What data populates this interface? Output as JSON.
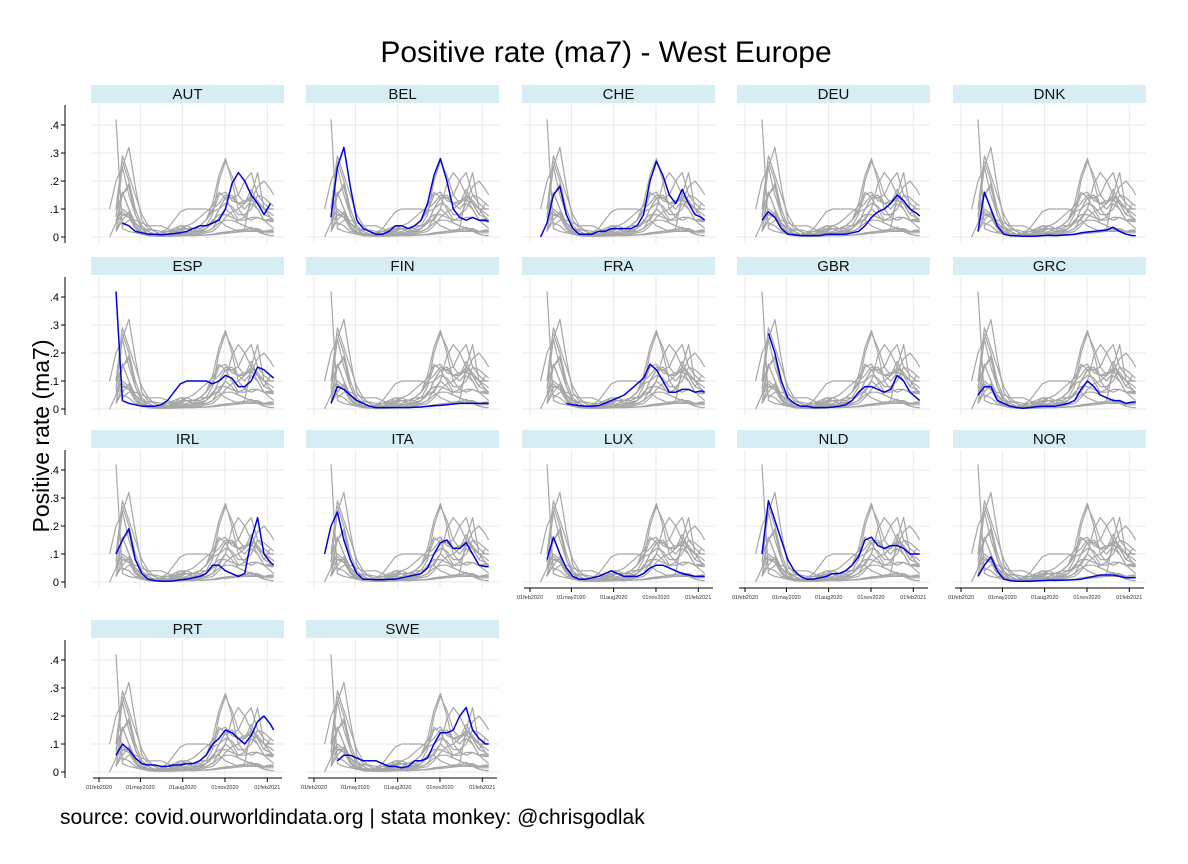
{
  "title": "Positive rate (ma7) - West Europe",
  "ylabel": "Positive rate (ma7)",
  "source": "source: covid.ourworldindata.org | stata monkey: @chrisgodlak",
  "colors": {
    "highlight": "#0000dd",
    "background_lines": "#a6a6a6",
    "panel_header": "#d6edf3",
    "grid": "#e8e8e8",
    "axis": "#000000"
  },
  "chart_data": {
    "type": "line",
    "layout": "small-multiples",
    "columns": 5,
    "x_ticks": [
      "01feb2020",
      "01may2020",
      "01aug2020",
      "01nov2020",
      "01feb2021"
    ],
    "y_ticks": [
      "0",
      ".1",
      ".2",
      ".3",
      ".4"
    ],
    "ylim": [
      0,
      0.45
    ],
    "xlim": [
      "2020-02-01",
      "2021-02-20"
    ],
    "x": [
      "2020-02-24",
      "2020-03-09",
      "2020-03-23",
      "2020-04-06",
      "2020-04-20",
      "2020-05-04",
      "2020-05-18",
      "2020-06-01",
      "2020-06-15",
      "2020-06-29",
      "2020-07-13",
      "2020-07-27",
      "2020-08-10",
      "2020-08-24",
      "2020-09-07",
      "2020-09-21",
      "2020-10-05",
      "2020-10-19",
      "2020-11-02",
      "2020-11-16",
      "2020-11-30",
      "2020-12-14",
      "2020-12-28",
      "2021-01-11",
      "2021-01-25",
      "2021-02-08",
      "2021-02-15"
    ],
    "grid": true,
    "panels": [
      {
        "label": "AUT",
        "values": [
          null,
          null,
          0.05,
          0.04,
          0.02,
          0.015,
          0.01,
          0.01,
          0.008,
          0.01,
          0.012,
          0.015,
          0.02,
          0.03,
          0.04,
          0.04,
          0.05,
          0.06,
          0.1,
          0.19,
          0.23,
          0.2,
          0.15,
          0.12,
          0.08,
          0.12,
          null
        ]
      },
      {
        "label": "BEL",
        "values": [
          null,
          0.07,
          0.25,
          0.32,
          0.18,
          0.06,
          0.03,
          0.02,
          0.01,
          0.01,
          0.02,
          0.04,
          0.04,
          0.03,
          0.04,
          0.06,
          0.12,
          0.22,
          0.28,
          0.2,
          0.1,
          0.07,
          0.06,
          0.07,
          0.06,
          0.06,
          0.055
        ]
      },
      {
        "label": "CHE",
        "values": [
          0.0,
          0.05,
          0.15,
          0.18,
          0.08,
          0.03,
          0.01,
          0.01,
          0.01,
          0.02,
          0.02,
          0.03,
          0.03,
          0.03,
          0.03,
          0.04,
          0.08,
          0.2,
          0.27,
          0.22,
          0.15,
          0.12,
          0.17,
          0.12,
          0.08,
          0.07,
          0.06
        ]
      },
      {
        "label": "DEU",
        "values": [
          null,
          0.06,
          0.09,
          0.07,
          0.03,
          0.01,
          0.008,
          0.005,
          0.005,
          0.005,
          0.005,
          0.01,
          0.01,
          0.01,
          0.01,
          0.015,
          0.02,
          0.04,
          0.07,
          0.09,
          0.1,
          0.12,
          0.15,
          0.13,
          0.1,
          0.085,
          0.075
        ]
      },
      {
        "label": "DNK",
        "values": [
          null,
          0.02,
          0.16,
          0.1,
          0.04,
          0.01,
          0.005,
          0.004,
          0.003,
          0.003,
          0.003,
          0.005,
          0.006,
          0.005,
          0.006,
          0.008,
          0.01,
          0.015,
          0.018,
          0.02,
          0.022,
          0.025,
          0.035,
          0.02,
          0.01,
          0.005,
          0.005
        ]
      },
      {
        "label": "ESP",
        "values": [
          null,
          0.42,
          0.03,
          0.02,
          0.015,
          0.01,
          0.01,
          0.01,
          0.015,
          0.03,
          0.06,
          0.09,
          0.1,
          0.1,
          0.1,
          0.1,
          0.09,
          0.1,
          0.12,
          0.11,
          0.08,
          0.08,
          0.1,
          0.15,
          0.14,
          0.12,
          0.11
        ]
      },
      {
        "label": "FIN",
        "values": [
          null,
          0.02,
          0.08,
          0.07,
          0.05,
          0.03,
          0.02,
          0.01,
          0.005,
          0.005,
          0.005,
          0.005,
          0.005,
          0.005,
          0.006,
          0.007,
          0.01,
          0.012,
          0.013,
          0.015,
          0.018,
          0.02,
          0.02,
          0.02,
          0.02,
          0.02,
          0.02
        ]
      },
      {
        "label": "FRA",
        "values": [
          null,
          null,
          null,
          null,
          0.02,
          0.015,
          0.012,
          0.01,
          0.01,
          0.012,
          0.02,
          0.03,
          0.04,
          0.05,
          0.07,
          0.09,
          0.11,
          0.16,
          0.14,
          0.1,
          0.06,
          0.06,
          0.07,
          0.07,
          0.06,
          0.065,
          0.06
        ]
      },
      {
        "label": "GBR",
        "values": [
          null,
          null,
          0.27,
          0.2,
          0.1,
          0.04,
          0.02,
          0.01,
          0.01,
          0.005,
          0.005,
          0.005,
          0.007,
          0.01,
          0.015,
          0.03,
          0.06,
          0.08,
          0.08,
          0.07,
          0.06,
          0.07,
          0.12,
          0.1,
          0.06,
          0.04,
          0.03
        ]
      },
      {
        "label": "GRC",
        "values": [
          null,
          0.05,
          0.08,
          0.08,
          0.03,
          0.02,
          0.01,
          0.005,
          0.003,
          0.005,
          0.008,
          0.01,
          0.01,
          0.01,
          0.015,
          0.02,
          0.03,
          0.07,
          0.1,
          0.08,
          0.05,
          0.04,
          0.03,
          0.03,
          0.02,
          0.025,
          0.025
        ]
      },
      {
        "label": "IRL",
        "values": [
          null,
          0.1,
          0.15,
          0.19,
          0.08,
          0.03,
          0.01,
          0.005,
          0.003,
          0.003,
          0.004,
          0.008,
          0.01,
          0.015,
          0.02,
          0.03,
          0.06,
          0.06,
          0.04,
          0.03,
          0.02,
          0.03,
          0.15,
          0.23,
          0.1,
          0.07,
          0.06
        ]
      },
      {
        "label": "ITA",
        "values": [
          0.1,
          0.2,
          0.25,
          0.15,
          0.08,
          0.03,
          0.01,
          0.01,
          0.008,
          0.008,
          0.01,
          0.01,
          0.015,
          0.02,
          0.025,
          0.03,
          0.05,
          0.1,
          0.14,
          0.15,
          0.12,
          0.12,
          0.14,
          0.1,
          0.06,
          0.055,
          0.055
        ]
      },
      {
        "label": "LUX",
        "values": [
          null,
          0.08,
          0.16,
          0.1,
          0.05,
          0.02,
          0.01,
          0.01,
          0.015,
          0.02,
          0.03,
          0.04,
          0.03,
          0.02,
          0.02,
          0.02,
          0.03,
          0.05,
          0.06,
          0.06,
          0.05,
          0.04,
          0.03,
          0.025,
          0.02,
          0.02,
          0.02
        ]
      },
      {
        "label": "NLD",
        "values": [
          null,
          0.1,
          0.29,
          0.22,
          0.15,
          0.08,
          0.04,
          0.02,
          0.01,
          0.01,
          0.015,
          0.02,
          0.03,
          0.03,
          0.04,
          0.06,
          0.09,
          0.15,
          0.16,
          0.13,
          0.12,
          0.13,
          0.13,
          0.12,
          0.1,
          0.1,
          0.1
        ]
      },
      {
        "label": "NOR",
        "values": [
          null,
          0.02,
          0.06,
          0.09,
          0.04,
          0.01,
          0.005,
          0.003,
          0.003,
          0.003,
          0.004,
          0.005,
          0.006,
          0.006,
          0.006,
          0.007,
          0.008,
          0.01,
          0.015,
          0.02,
          0.025,
          0.025,
          0.025,
          0.02,
          0.015,
          0.015,
          0.015
        ]
      },
      {
        "label": "PRT",
        "values": [
          null,
          0.06,
          0.1,
          0.08,
          0.05,
          0.03,
          0.025,
          0.025,
          0.02,
          0.02,
          0.025,
          0.025,
          0.03,
          0.03,
          0.04,
          0.06,
          0.1,
          0.12,
          0.15,
          0.14,
          0.12,
          0.1,
          0.13,
          0.18,
          0.2,
          0.17,
          0.15
        ]
      },
      {
        "label": "SWE",
        "values": [
          null,
          null,
          0.04,
          0.06,
          0.06,
          0.05,
          0.04,
          0.04,
          0.04,
          0.03,
          0.02,
          0.02,
          0.015,
          0.02,
          0.04,
          0.04,
          0.05,
          0.1,
          0.14,
          0.14,
          0.15,
          0.2,
          0.23,
          0.15,
          0.12,
          0.1,
          0.1
        ]
      }
    ]
  }
}
